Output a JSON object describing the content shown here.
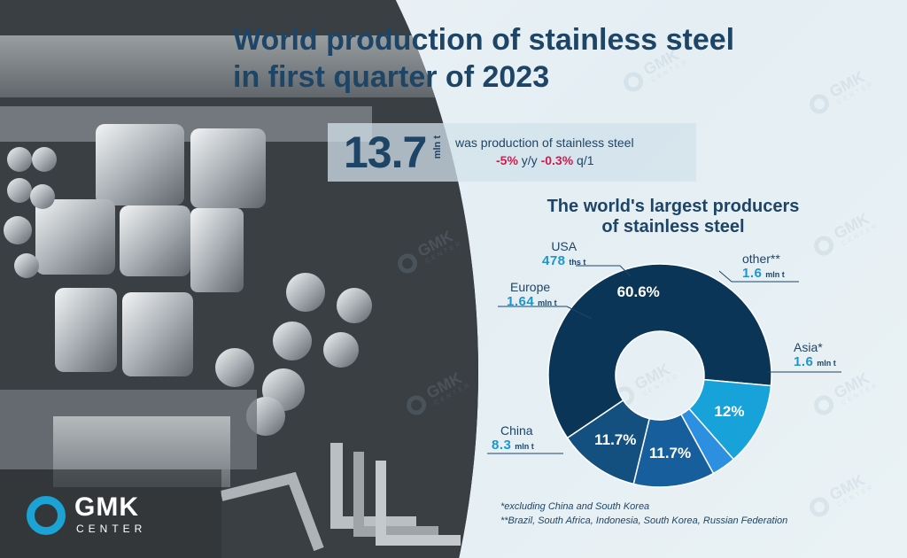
{
  "title_line1": "World production of stainless steel",
  "title_line2": "in first quarter of 2023",
  "kpi": {
    "value": "13.7",
    "unit": "mln t",
    "text": "was production of stainless steel",
    "yy_value": "-5%",
    "yy_label": "y/y",
    "qq_value": "-0.3%",
    "qq_label": "q/1"
  },
  "chart_data": {
    "type": "pie",
    "title": "The world's largest producers of stainless steel",
    "title_line1": "The world's largest producers",
    "title_line2": "of stainless steel",
    "slices": [
      {
        "name": "China",
        "value": 60.6,
        "pct_label": "60.6%",
        "amount": "8.3",
        "unit": "mln t",
        "color": "#0b3556"
      },
      {
        "name": "Europe",
        "value": 12.0,
        "pct_label": "12%",
        "amount": "1.64",
        "unit": "mln t",
        "color": "#17a3da"
      },
      {
        "name": "USA",
        "value": 3.5,
        "pct_label": "",
        "amount": "478",
        "unit": "ths t",
        "color": "#2d8fe0"
      },
      {
        "name": "other**",
        "value": 11.7,
        "pct_label": "11.7%",
        "amount": "1.6",
        "unit": "mln t",
        "color": "#175f9c"
      },
      {
        "name": "Asia*",
        "value": 11.7,
        "pct_label": "11.7%",
        "amount": "1.6",
        "unit": "mln t",
        "color": "#14507f"
      }
    ]
  },
  "footnote1": "*excluding China and South Korea",
  "footnote2": "**Brazil, South Africa, Indonesia, South Korea, Russian Federation",
  "logo": {
    "name": "GMK",
    "sub": "CENTER"
  },
  "watermark": {
    "name": "GMK",
    "sub": "CENTER"
  },
  "colors": {
    "accent": "#1aa3d4",
    "title": "#1e4466",
    "negative": "#d11a4e"
  }
}
